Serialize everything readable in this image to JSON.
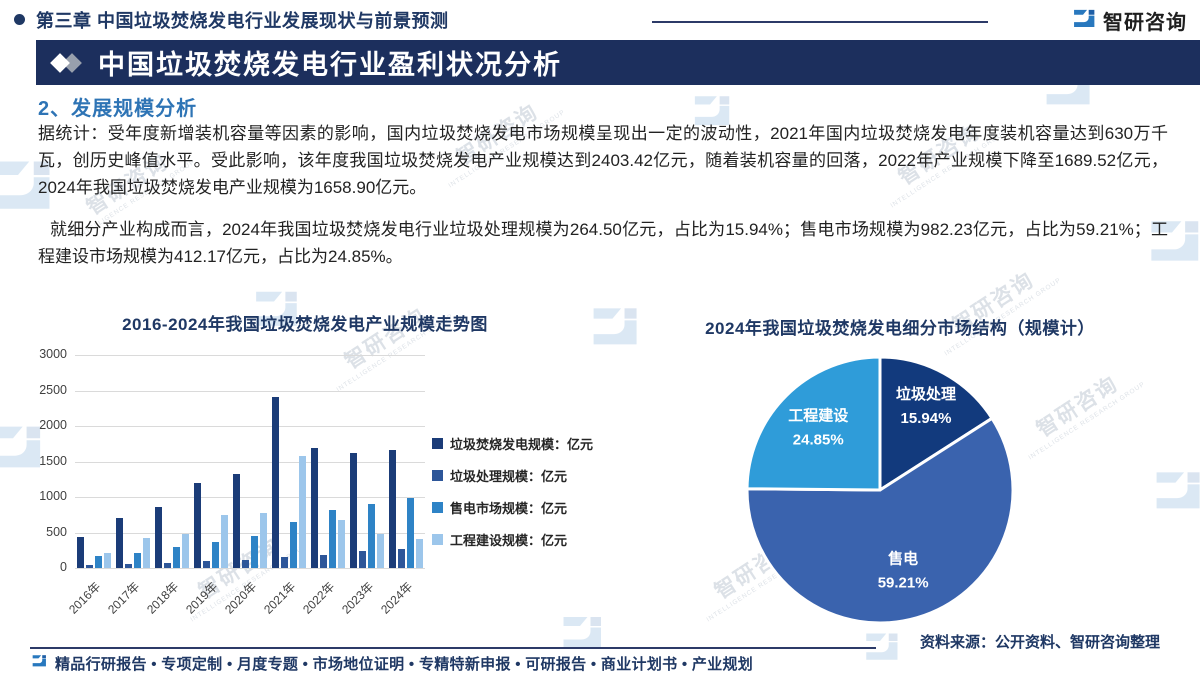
{
  "header": {
    "chapter_title": "第三章 中国垃圾焚烧发电行业发展现状与前景预测",
    "brand_name": "智研咨询",
    "banner_title": "中国垃圾焚烧发电行业盈利状况分析"
  },
  "content": {
    "section_heading": "2、发展规模分析",
    "paragraph_1": "据统计：受年度新增装机容量等因素的影响，国内垃圾焚烧发电市场规模呈现出一定的波动性，2021年国内垃圾焚烧发电年度装机容量达到630万千瓦，创历史峰值水平。受此影响，该年度我国垃圾焚烧发电产业规模达到2403.42亿元，随着装机容量的回落，2022年产业规模下降至1689.52亿元，2024年我国垃圾焚烧发电产业规模为1658.90亿元。",
    "paragraph_2": "就细分产业构成而言，2024年我国垃圾焚烧发电行业垃圾处理规模为264.50亿元，占比为15.94%；售电市场规模为982.23亿元，占比为59.21%；工程建设市场规模为412.17亿元，占比为24.85%。"
  },
  "chart_data": [
    {
      "type": "bar",
      "title": "2016-2024年我国垃圾焚烧发电产业规模走势图",
      "categories": [
        "2016年",
        "2017年",
        "2018年",
        "2019年",
        "2020年",
        "2021年",
        "2022年",
        "2023年",
        "2024年"
      ],
      "series": [
        {
          "name": "垃圾焚烧发电规模：亿元",
          "color": "#1B3C78",
          "values": [
            430,
            700,
            860,
            1200,
            1330,
            2403.42,
            1689.52,
            1620,
            1658.9
          ]
        },
        {
          "name": "垃圾处理规模：亿元",
          "color": "#2D5699",
          "values": [
            45,
            60,
            75,
            100,
            110,
            160,
            180,
            240,
            264.5
          ]
        },
        {
          "name": "售电市场规模：亿元",
          "color": "#2E83C6",
          "values": [
            165,
            210,
            300,
            370,
            450,
            650,
            820,
            900,
            982.23
          ]
        },
        {
          "name": "工程建设规模：亿元",
          "color": "#9CC6EB",
          "values": [
            205,
            420,
            480,
            740,
            770,
            1580,
            680,
            480,
            412.17
          ]
        }
      ],
      "xlabel": "",
      "ylabel": "",
      "ylim": [
        0,
        3000
      ],
      "ytick_step": 500,
      "grid": true,
      "legend_position": "right"
    },
    {
      "type": "pie",
      "title": "2024年我国垃圾焚烧发电细分市场结构（规模计）",
      "start_angle": "top",
      "direction": "clockwise",
      "slices": [
        {
          "label": "垃圾处理",
          "value": 15.94,
          "display": "15.94%",
          "color": "#123A7D"
        },
        {
          "label": "售电",
          "value": 59.21,
          "display": "59.21%",
          "color": "#3A63AE"
        },
        {
          "label": "工程建设",
          "value": 24.85,
          "display": "24.85%",
          "color": "#2F9CD9"
        }
      ]
    }
  ],
  "footer": {
    "source_note": "资料来源：公开资料、智研咨询整理",
    "services": "精品行研报告 • 专项定制 • 月度专题 • 市场地位证明 • 专精特新申报 • 可研报告 • 商业计划书 • 产业规划"
  },
  "watermark": {
    "text": "智研咨询",
    "subtext": "INTELLIGENCE RESEARCH GROUP"
  }
}
